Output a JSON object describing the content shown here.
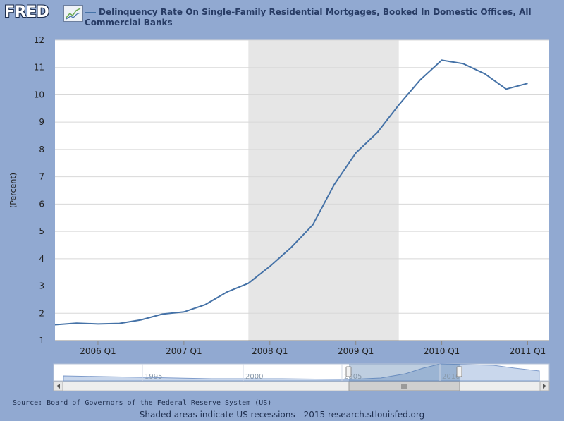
{
  "logo": {
    "text": "FRED"
  },
  "legend": {
    "series_name": "Delinquency Rate On Single-Family Residential Mortgages, Booked In Domestic Offices, All Commercial Banks"
  },
  "chart_data": {
    "type": "line",
    "title": "",
    "xlabel": "",
    "ylabel": "(Percent)",
    "ylim": [
      1,
      12
    ],
    "yticks": [
      1,
      2,
      3,
      4,
      5,
      6,
      7,
      8,
      9,
      10,
      11,
      12
    ],
    "xtick_labels": [
      "2006 Q1",
      "2007 Q1",
      "2008 Q1",
      "2009 Q1",
      "2010 Q1",
      "2011 Q1"
    ],
    "grid": true,
    "recession": {
      "start": "2007 Q4",
      "end": "2009 Q2"
    },
    "series": [
      {
        "x": [
          "2005 Q3",
          "2005 Q4",
          "2006 Q1",
          "2006 Q2",
          "2006 Q3",
          "2006 Q4",
          "2007 Q1",
          "2007 Q2",
          "2007 Q3",
          "2007 Q4",
          "2008 Q1",
          "2008 Q2",
          "2008 Q3",
          "2008 Q4",
          "2009 Q1",
          "2009 Q2",
          "2009 Q3",
          "2009 Q4",
          "2010 Q1",
          "2010 Q2",
          "2010 Q3",
          "2010 Q4",
          "2011 Q1"
        ],
        "values": [
          1.58,
          1.64,
          1.61,
          1.63,
          1.76,
          1.97,
          2.05,
          2.32,
          2.78,
          3.1,
          3.72,
          4.42,
          5.24,
          6.72,
          7.87,
          8.62,
          9.63,
          10.55,
          11.27,
          11.14,
          10.77,
          10.21,
          10.42
        ],
        "color": "#4572a7"
      }
    ]
  },
  "navigator": {
    "labels": [
      "1995",
      "2000",
      "2005",
      "2010"
    ]
  },
  "source": {
    "text": "Source: Board of Governors of the Federal Reserve System (US)"
  },
  "footer": {
    "text": "Shaded areas indicate US recessions - 2015 research.stlouisfed.org"
  },
  "colors": {
    "page_bg": "#91a9d1",
    "plot_bg": "#ffffff",
    "recession": "#e6e6e6",
    "series": "#4572a7"
  }
}
